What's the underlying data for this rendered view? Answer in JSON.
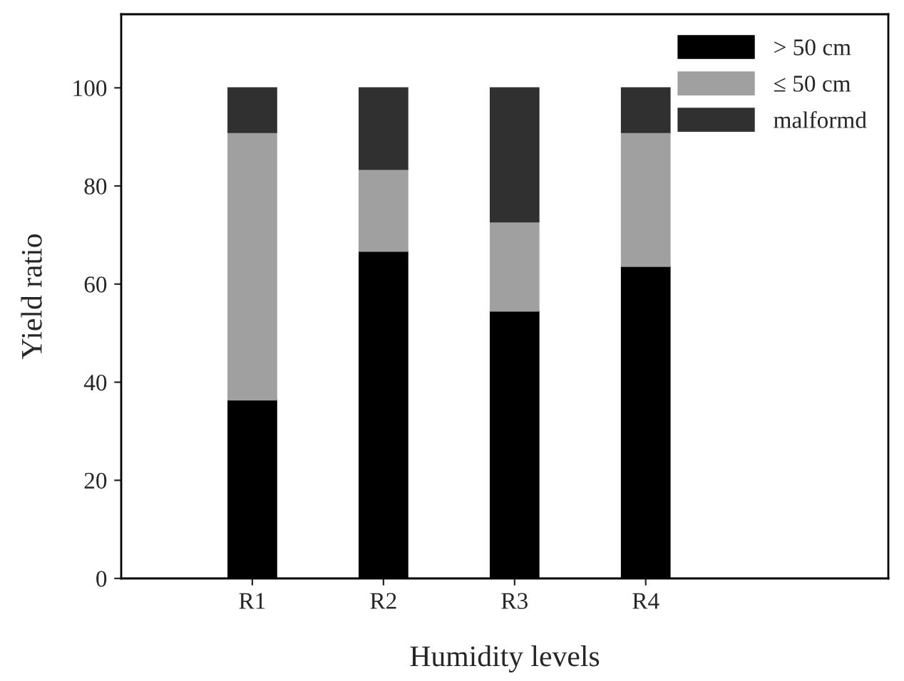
{
  "chart_data": {
    "type": "bar",
    "stacked": true,
    "xlabel": "Humidity levels",
    "ylabel": "Yield ratio",
    "categories": [
      "R1",
      "R2",
      "R3",
      "R4"
    ],
    "series": [
      {
        "name": "> 50 cm",
        "color": "#000000",
        "values": [
          36.4,
          66.7,
          54.5,
          63.6
        ]
      },
      {
        "name": "≤ 50 cm",
        "color": "#a0a0a0",
        "values": [
          54.5,
          16.7,
          18.2,
          27.3
        ]
      },
      {
        "name": "malformd",
        "color": "#303030",
        "values": [
          9.1,
          16.6,
          27.3,
          9.1
        ]
      }
    ],
    "ylim": [
      0,
      115
    ],
    "yticks": [
      0,
      20,
      40,
      60,
      80,
      100
    ],
    "grid": false,
    "legend": "top right"
  }
}
